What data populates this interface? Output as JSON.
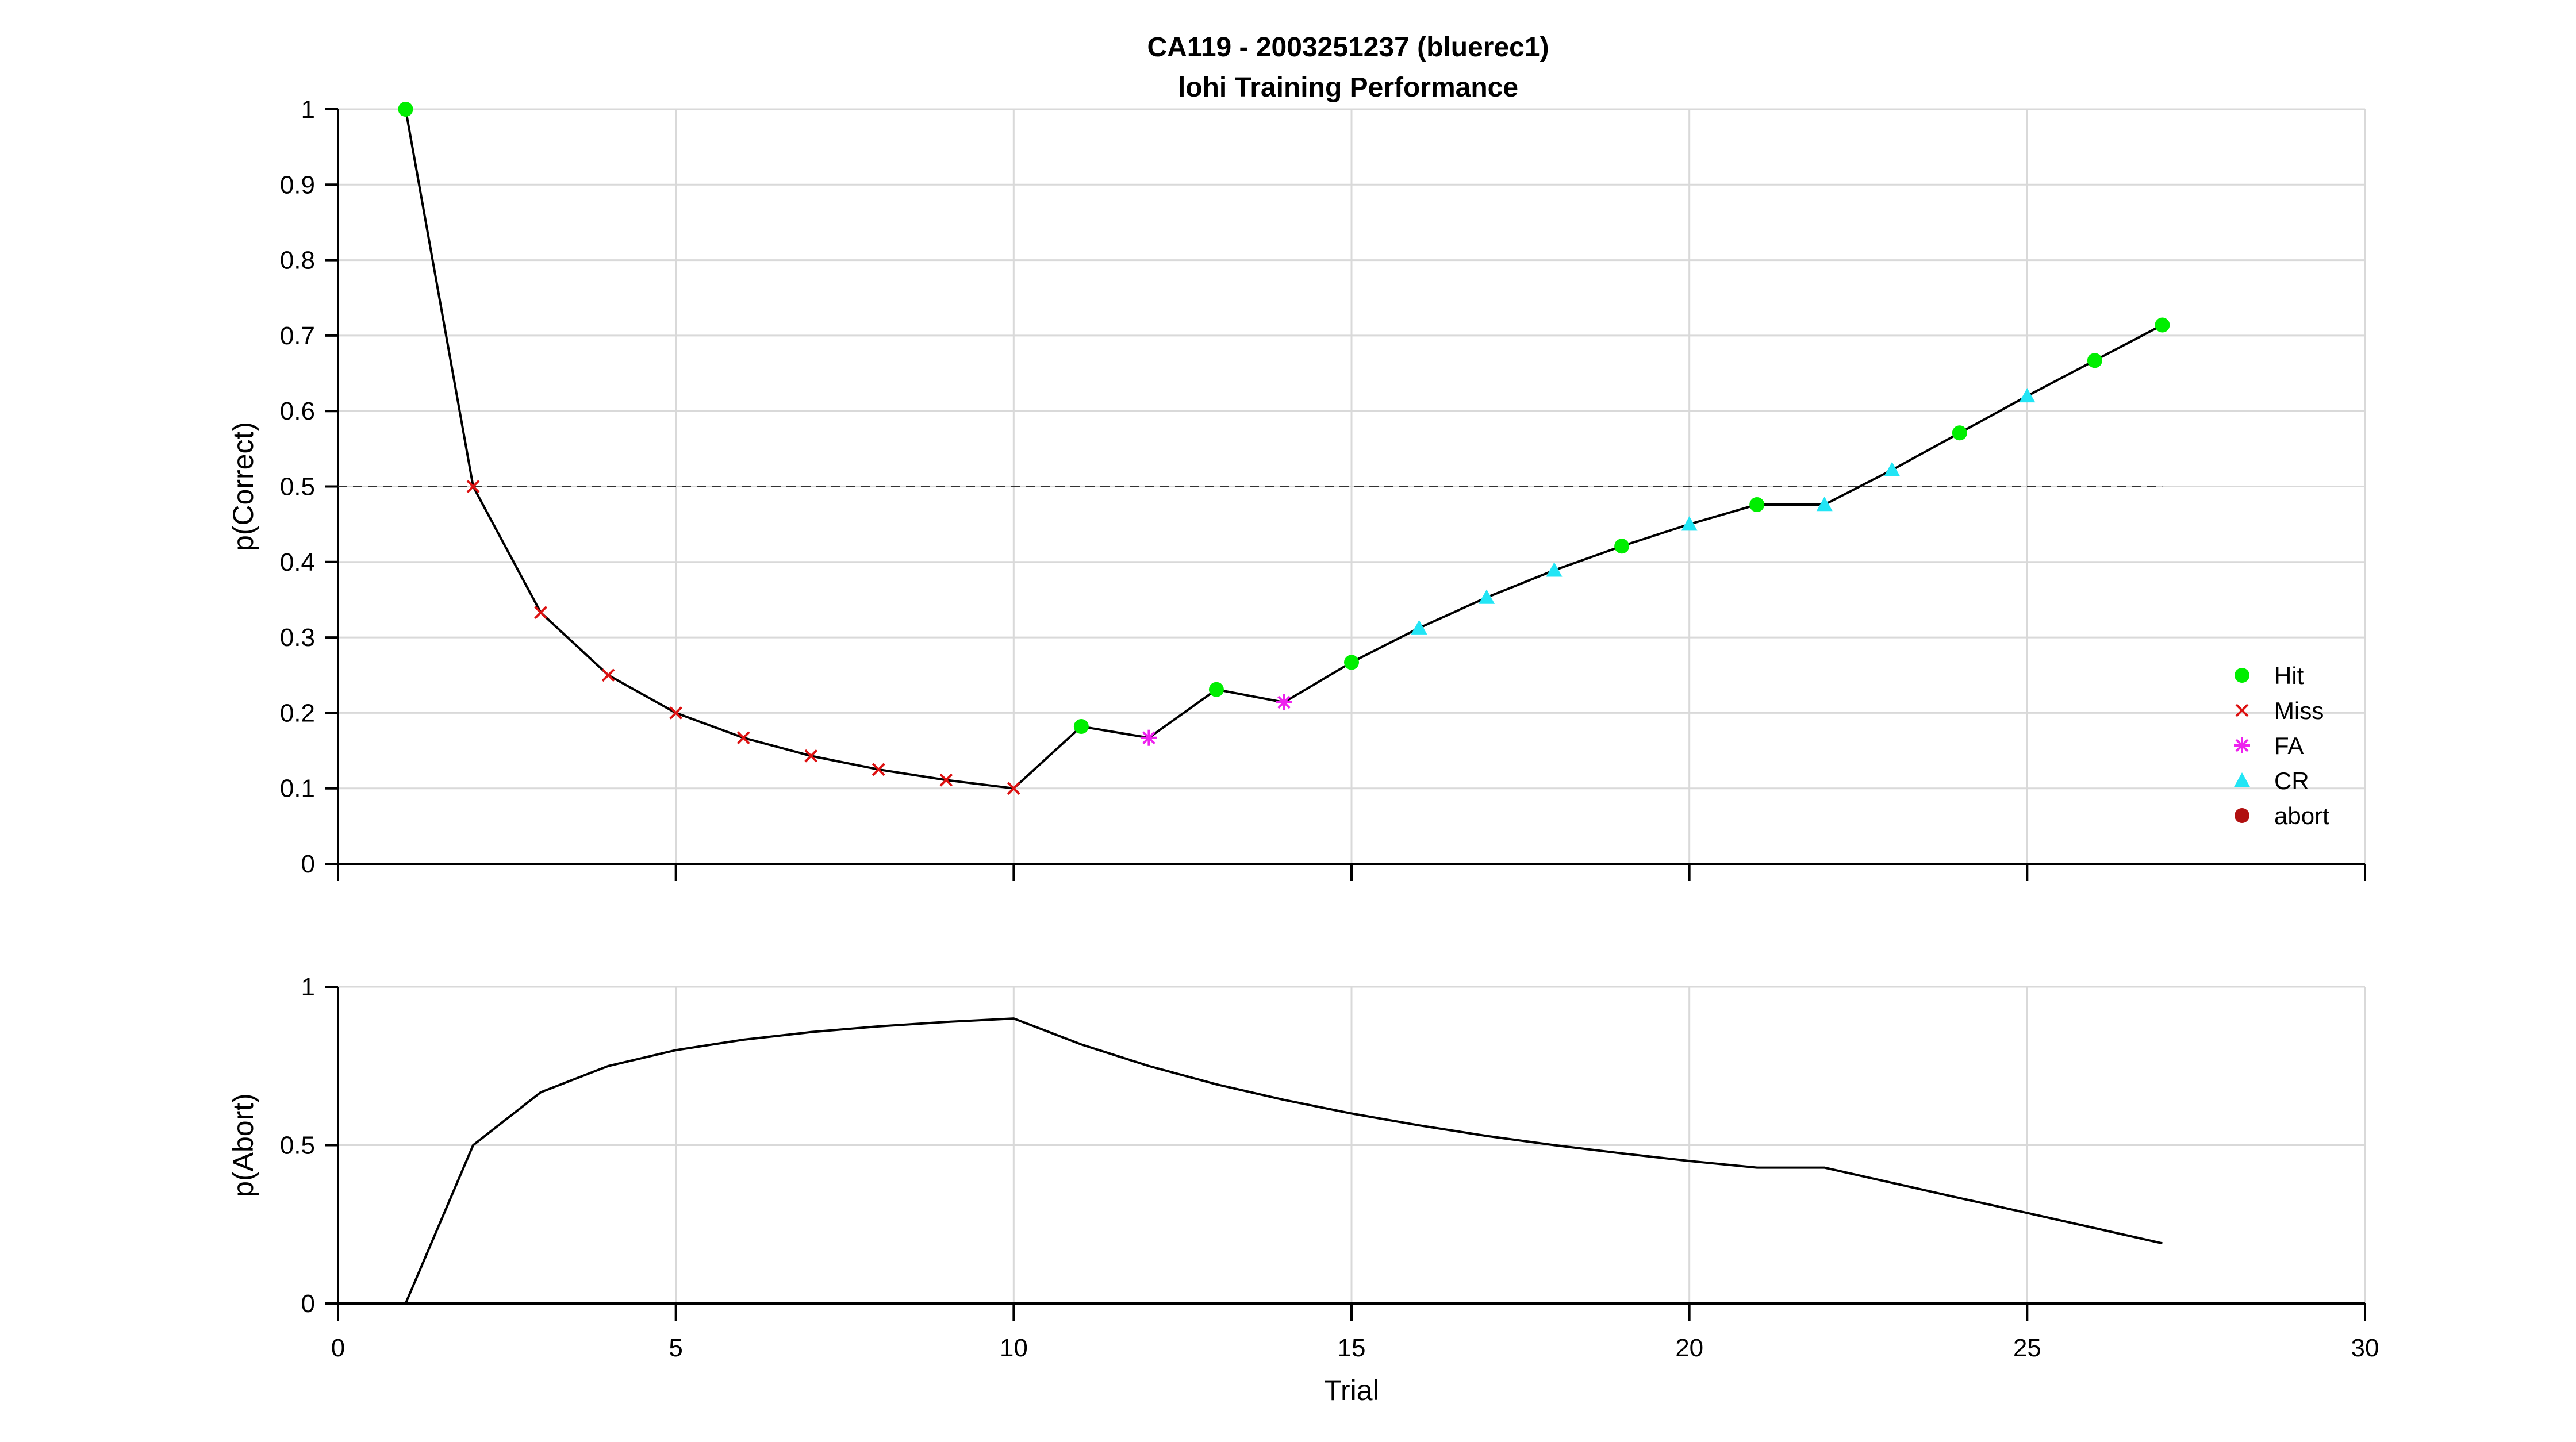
{
  "figure": {
    "title_line1": "CA119 - 2003251237 (bluerec1)",
    "title_line2": "lohi Training Performance"
  },
  "chart_data": [
    {
      "type": "line",
      "panel": "top",
      "ylabel": "p(Correct)",
      "xlabel": "",
      "xlim": [
        0,
        30
      ],
      "ylim": [
        0,
        1
      ],
      "xticks": [
        0,
        5,
        10,
        15,
        20,
        25,
        30
      ],
      "yticks": [
        0,
        0.1,
        0.2,
        0.3,
        0.4,
        0.5,
        0.6,
        0.7,
        0.8,
        0.9,
        1
      ],
      "ytick_labels": [
        "0",
        "0.1",
        "0.2",
        "0.3",
        "0.4",
        "0.5",
        "0.6",
        "0.7",
        "0.8",
        "0.9",
        "1"
      ],
      "grid": true,
      "reference_line": {
        "y": 0.5,
        "x_range": [
          0,
          27
        ],
        "style": "dashed"
      },
      "line": {
        "x": [
          1,
          2,
          3,
          4,
          5,
          6,
          7,
          8,
          9,
          10,
          11,
          12,
          13,
          14,
          15,
          16,
          17,
          18,
          19,
          20,
          21,
          22,
          23,
          24,
          25,
          26,
          27
        ],
        "y": [
          1.0,
          0.5,
          0.333,
          0.25,
          0.2,
          0.167,
          0.143,
          0.125,
          0.111,
          0.1,
          0.182,
          0.167,
          0.231,
          0.214,
          0.267,
          0.3125,
          0.353,
          0.389,
          0.421,
          0.45,
          0.476,
          0.476,
          0.522,
          0.571,
          0.62,
          0.667,
          0.714
        ],
        "outcome": [
          "Hit",
          "Miss",
          "Miss",
          "Miss",
          "Miss",
          "Miss",
          "Miss",
          "Miss",
          "Miss",
          "Miss",
          "Hit",
          "FA",
          "Hit",
          "FA",
          "Hit",
          "CR",
          "CR",
          "CR",
          "Hit",
          "CR",
          "Hit",
          "CR",
          "CR",
          "Hit",
          "CR",
          "Hit",
          "Hit"
        ]
      },
      "legend": {
        "placement": "bottom-right",
        "entries": [
          {
            "label": "Hit",
            "marker": "circle",
            "color": "#00ee00"
          },
          {
            "label": "Miss",
            "marker": "x",
            "color": "#dd1111"
          },
          {
            "label": "FA",
            "marker": "asterisk",
            "color": "#ee22ee"
          },
          {
            "label": "CR",
            "marker": "triangle",
            "color": "#22e5f5"
          },
          {
            "label": "abort",
            "marker": "circle",
            "color": "#b01010"
          }
        ]
      }
    },
    {
      "type": "line",
      "panel": "bottom",
      "ylabel": "p(Abort)",
      "xlabel": "Trial",
      "xlim": [
        0,
        30
      ],
      "ylim": [
        0,
        1
      ],
      "xticks": [
        0,
        5,
        10,
        15,
        20,
        25,
        30
      ],
      "xtick_labels": [
        "0",
        "5",
        "10",
        "15",
        "20",
        "25",
        "30"
      ],
      "yticks": [
        0,
        0.5,
        1
      ],
      "ytick_labels": [
        "0",
        "0.5",
        "1"
      ],
      "grid": true,
      "line": {
        "x": [
          1,
          2,
          3,
          4,
          5,
          6,
          7,
          8,
          9,
          10,
          11,
          12,
          13,
          14,
          15,
          16,
          17,
          18,
          19,
          20,
          21,
          22,
          23,
          24,
          25,
          26,
          27
        ],
        "y": [
          0,
          0.5,
          0.667,
          0.75,
          0.8,
          0.833,
          0.857,
          0.875,
          0.889,
          0.9,
          0.818,
          0.75,
          0.692,
          0.643,
          0.6,
          0.5625,
          0.529,
          0.5,
          0.474,
          0.45,
          0.429,
          0.429,
          0.381,
          0.333,
          0.286,
          0.238,
          0.19
        ]
      }
    }
  ]
}
